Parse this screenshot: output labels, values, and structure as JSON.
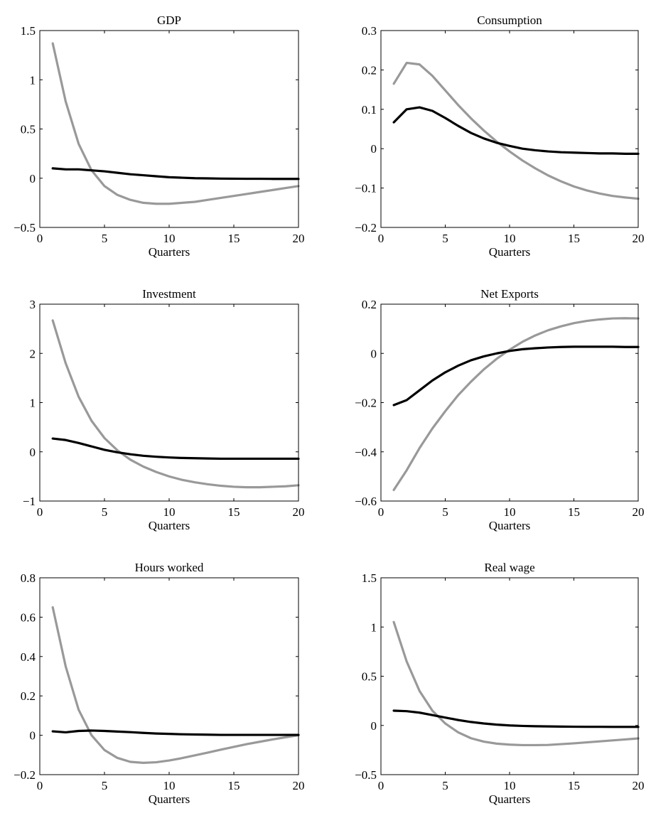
{
  "chart_data": [
    {
      "type": "line",
      "title": "GDP",
      "xlabel": "Quarters",
      "ylabel": "",
      "xlim": [
        0,
        20
      ],
      "ylim": [
        -0.5,
        1.5
      ],
      "xticks": [
        "0",
        "5",
        "10",
        "15",
        "20"
      ],
      "yticks": [
        "−0.5",
        "0",
        "0.5",
        "1",
        "1.5"
      ],
      "x": [
        1,
        2,
        3,
        4,
        5,
        6,
        7,
        8,
        9,
        10,
        11,
        12,
        13,
        14,
        15,
        16,
        17,
        18,
        19,
        20
      ],
      "series": [
        {
          "color": "#999999",
          "values": [
            1.37,
            0.78,
            0.35,
            0.08,
            -0.08,
            -0.17,
            -0.22,
            -0.25,
            -0.26,
            -0.26,
            -0.25,
            -0.24,
            -0.22,
            -0.2,
            -0.18,
            -0.16,
            -0.14,
            -0.12,
            -0.1,
            -0.08
          ]
        },
        {
          "color": "#000000",
          "values": [
            0.1,
            0.09,
            0.09,
            0.08,
            0.07,
            0.055,
            0.04,
            0.03,
            0.02,
            0.01,
            0.005,
            0.0,
            -0.002,
            -0.004,
            -0.005,
            -0.006,
            -0.006,
            -0.007,
            -0.007,
            -0.007
          ]
        }
      ]
    },
    {
      "type": "line",
      "title": "Consumption",
      "xlabel": "Quarters",
      "ylabel": "",
      "xlim": [
        0,
        20
      ],
      "ylim": [
        -0.2,
        0.3
      ],
      "xticks": [
        "0",
        "5",
        "10",
        "15",
        "20"
      ],
      "yticks": [
        "−0.2",
        "−0.1",
        "0",
        "0.1",
        "0.2",
        "0.3"
      ],
      "x": [
        1,
        2,
        3,
        4,
        5,
        6,
        7,
        8,
        9,
        10,
        11,
        12,
        13,
        14,
        15,
        16,
        17,
        18,
        19,
        20
      ],
      "series": [
        {
          "color": "#999999",
          "values": [
            0.165,
            0.218,
            0.214,
            0.185,
            0.148,
            0.111,
            0.077,
            0.046,
            0.018,
            -0.007,
            -0.03,
            -0.05,
            -0.068,
            -0.083,
            -0.096,
            -0.106,
            -0.114,
            -0.12,
            -0.124,
            -0.127
          ]
        },
        {
          "color": "#000000",
          "values": [
            0.067,
            0.1,
            0.105,
            0.096,
            0.078,
            0.058,
            0.04,
            0.026,
            0.015,
            0.007,
            0.0,
            -0.004,
            -0.007,
            -0.009,
            -0.01,
            -0.011,
            -0.012,
            -0.012,
            -0.013,
            -0.013
          ]
        }
      ]
    },
    {
      "type": "line",
      "title": "Investment",
      "xlabel": "Quarters",
      "ylabel": "",
      "xlim": [
        0,
        20
      ],
      "ylim": [
        -1,
        3
      ],
      "xticks": [
        "0",
        "5",
        "10",
        "15",
        "20"
      ],
      "yticks": [
        "−1",
        "0",
        "1",
        "2",
        "3"
      ],
      "x": [
        1,
        2,
        3,
        4,
        5,
        6,
        7,
        8,
        9,
        10,
        11,
        12,
        13,
        14,
        15,
        16,
        17,
        18,
        19,
        20
      ],
      "series": [
        {
          "color": "#999999",
          "values": [
            2.67,
            1.8,
            1.12,
            0.63,
            0.28,
            0.03,
            -0.16,
            -0.3,
            -0.41,
            -0.5,
            -0.57,
            -0.62,
            -0.66,
            -0.69,
            -0.71,
            -0.72,
            -0.72,
            -0.71,
            -0.7,
            -0.68
          ]
        },
        {
          "color": "#000000",
          "values": [
            0.27,
            0.24,
            0.18,
            0.11,
            0.04,
            -0.01,
            -0.05,
            -0.08,
            -0.1,
            -0.115,
            -0.125,
            -0.13,
            -0.135,
            -0.14,
            -0.14,
            -0.14,
            -0.14,
            -0.14,
            -0.14,
            -0.14
          ]
        }
      ]
    },
    {
      "type": "line",
      "title": "Net Exports",
      "xlabel": "Quarters",
      "ylabel": "",
      "xlim": [
        0,
        20
      ],
      "ylim": [
        -0.6,
        0.2
      ],
      "xticks": [
        "0",
        "5",
        "10",
        "15",
        "20"
      ],
      "yticks": [
        "−0.6",
        "−0.4",
        "−0.2",
        "0",
        "0.2"
      ],
      "x": [
        1,
        2,
        3,
        4,
        5,
        6,
        7,
        8,
        9,
        10,
        11,
        12,
        13,
        14,
        15,
        16,
        17,
        18,
        19,
        20
      ],
      "series": [
        {
          "color": "#999999",
          "values": [
            -0.555,
            -0.475,
            -0.385,
            -0.305,
            -0.235,
            -0.17,
            -0.115,
            -0.065,
            -0.022,
            0.015,
            0.047,
            0.073,
            0.094,
            0.11,
            0.123,
            0.132,
            0.138,
            0.142,
            0.143,
            0.142
          ]
        },
        {
          "color": "#000000",
          "values": [
            -0.21,
            -0.19,
            -0.15,
            -0.11,
            -0.077,
            -0.05,
            -0.028,
            -0.012,
            0.0,
            0.01,
            0.017,
            0.021,
            0.024,
            0.026,
            0.027,
            0.027,
            0.027,
            0.027,
            0.026,
            0.026
          ]
        }
      ]
    },
    {
      "type": "line",
      "title": "Hours worked",
      "xlabel": "Quarters",
      "ylabel": "",
      "xlim": [
        0,
        20
      ],
      "ylim": [
        -0.2,
        0.8
      ],
      "xticks": [
        "0",
        "5",
        "10",
        "15",
        "20"
      ],
      "yticks": [
        "−0.2",
        "0",
        "0.2",
        "0.4",
        "0.6",
        "0.8"
      ],
      "x": [
        1,
        2,
        3,
        4,
        5,
        6,
        7,
        8,
        9,
        10,
        11,
        12,
        13,
        14,
        15,
        16,
        17,
        18,
        19,
        20
      ],
      "series": [
        {
          "color": "#999999",
          "values": [
            0.65,
            0.35,
            0.13,
            0.0,
            -0.075,
            -0.115,
            -0.135,
            -0.14,
            -0.137,
            -0.128,
            -0.116,
            -0.102,
            -0.088,
            -0.073,
            -0.059,
            -0.045,
            -0.033,
            -0.021,
            -0.01,
            0.0
          ]
        },
        {
          "color": "#000000",
          "values": [
            0.02,
            0.015,
            0.022,
            0.024,
            0.022,
            0.019,
            0.016,
            0.012,
            0.009,
            0.007,
            0.005,
            0.004,
            0.003,
            0.002,
            0.002,
            0.002,
            0.002,
            0.002,
            0.002,
            0.002
          ]
        }
      ]
    },
    {
      "type": "line",
      "title": "Real wage",
      "xlabel": "Quarters",
      "ylabel": "",
      "xlim": [
        0,
        20
      ],
      "ylim": [
        -0.5,
        1.5
      ],
      "xticks": [
        "0",
        "5",
        "10",
        "15",
        "20"
      ],
      "yticks": [
        "−0.5",
        "0",
        "0.5",
        "1",
        "1.5"
      ],
      "x": [
        1,
        2,
        3,
        4,
        5,
        6,
        7,
        8,
        9,
        10,
        11,
        12,
        13,
        14,
        15,
        16,
        17,
        18,
        19,
        20
      ],
      "series": [
        {
          "color": "#999999",
          "values": [
            1.05,
            0.65,
            0.35,
            0.15,
            0.02,
            -0.07,
            -0.13,
            -0.165,
            -0.185,
            -0.195,
            -0.2,
            -0.2,
            -0.198,
            -0.19,
            -0.182,
            -0.172,
            -0.162,
            -0.152,
            -0.142,
            -0.132
          ]
        },
        {
          "color": "#000000",
          "values": [
            0.15,
            0.145,
            0.13,
            0.105,
            0.08,
            0.055,
            0.035,
            0.02,
            0.008,
            0.0,
            -0.005,
            -0.008,
            -0.01,
            -0.012,
            -0.013,
            -0.014,
            -0.014,
            -0.015,
            -0.015,
            -0.015
          ]
        }
      ]
    }
  ]
}
